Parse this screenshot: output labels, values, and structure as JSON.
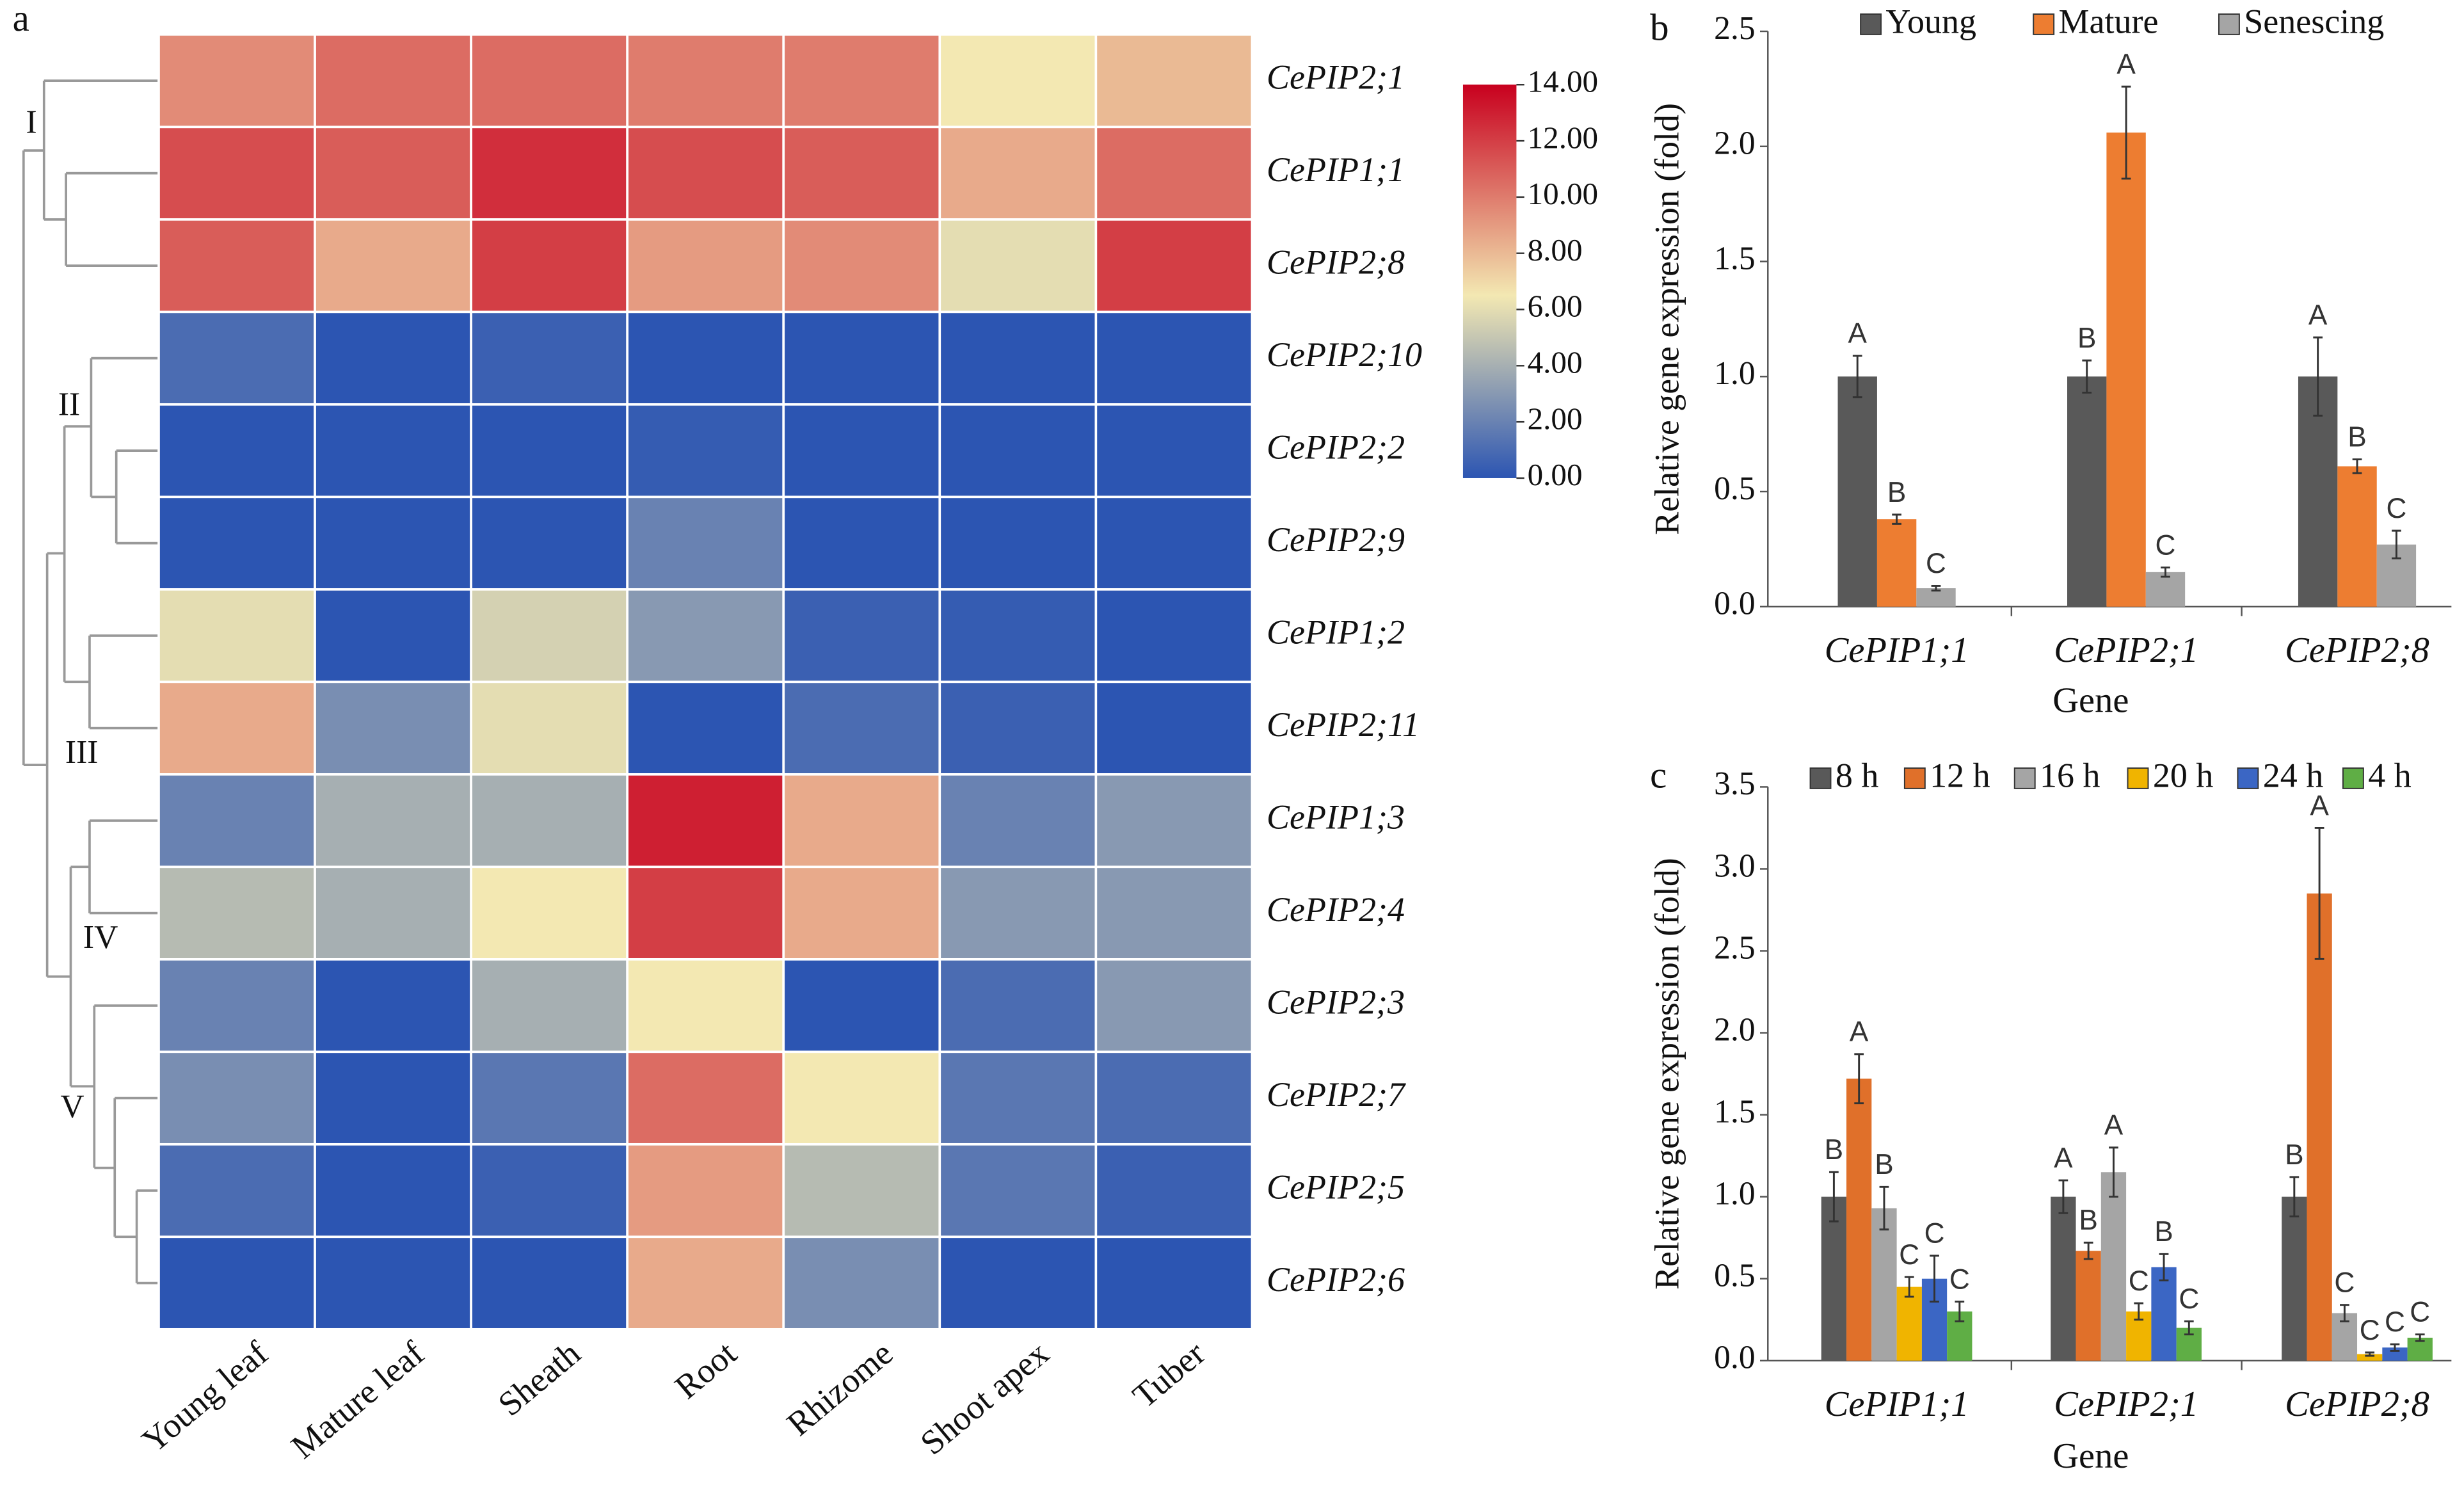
{
  "chart_data": [
    {
      "type": "heatmap",
      "panel": "a",
      "categories": [
        "Young leaf",
        "Mature leaf",
        "Sheath",
        "Root",
        "Rhizome",
        "Shoot apex",
        "Tuber"
      ],
      "rows": [
        "CePIP2;1",
        "CePIP1;1",
        "CePIP2;8",
        "CePIP2;10",
        "CePIP2;2",
        "CePIP2;9",
        "CePIP1;2",
        "CePIP2;11",
        "CePIP1;3",
        "CePIP2;4",
        "CePIP2;3",
        "CePIP2;7",
        "CePIP2;5",
        "CePIP2;6"
      ],
      "values": [
        [
          9.5,
          10.5,
          10.5,
          10,
          10,
          6.5,
          8
        ],
        [
          11.5,
          11,
          12.5,
          11.5,
          11,
          8.5,
          10.5
        ],
        [
          11,
          8.5,
          12,
          9,
          9.5,
          6,
          12
        ],
        [
          1,
          0,
          0.5,
          0,
          0,
          0,
          0
        ],
        [
          0,
          0,
          0,
          0.3,
          0,
          0,
          0
        ],
        [
          0,
          0,
          0,
          2,
          0,
          0,
          0
        ],
        [
          6,
          0,
          5.5,
          3,
          0.5,
          0.3,
          0
        ],
        [
          8.5,
          2.5,
          6,
          0,
          1,
          0.5,
          0
        ],
        [
          2,
          4,
          4,
          13,
          8.5,
          2,
          3
        ],
        [
          4.5,
          4,
          6.5,
          12,
          8.5,
          3,
          3
        ],
        [
          2,
          0,
          4,
          6.5,
          0,
          1,
          3
        ],
        [
          2.5,
          0,
          1.5,
          10.5,
          6.5,
          1.5,
          1
        ],
        [
          1,
          0,
          0.5,
          9,
          4.5,
          1.5,
          0.5
        ],
        [
          0,
          0,
          0,
          8.5,
          2.5,
          0,
          0
        ]
      ],
      "clusters": [
        "I",
        "II",
        "III",
        "IV",
        "V"
      ],
      "colorscale": [
        {
          "value": 0,
          "color": "#2c55b2"
        },
        {
          "value": 6.5,
          "color": "#f3e8b2"
        },
        {
          "value": 14,
          "color": "#c8001e"
        }
      ],
      "clim": [
        0,
        14
      ],
      "cticks": [
        {
          "value": 0,
          "label": "0.00"
        },
        {
          "value": 2,
          "label": "2.00"
        },
        {
          "value": 4,
          "label": "4.00"
        },
        {
          "value": 6,
          "label": "6.00"
        },
        {
          "value": 8,
          "label": "8.00"
        },
        {
          "value": 10,
          "label": "10.00"
        },
        {
          "value": 12,
          "label": "12.00"
        },
        {
          "value": 14,
          "label": "14.00"
        }
      ]
    },
    {
      "type": "bar",
      "panel": "b",
      "categories": [
        "CePIP1;1",
        "CePIP2;1",
        "CePIP2;8"
      ],
      "xlabel": "Gene",
      "ylabel": "Relative gene expression (fold)",
      "ylim": [
        0,
        2.5
      ],
      "yticks": [
        {
          "value": 0,
          "label": "0.0"
        },
        {
          "value": 0.5,
          "label": "0.5"
        },
        {
          "value": 1,
          "label": "1.0"
        },
        {
          "value": 1.5,
          "label": "1.5"
        },
        {
          "value": 2,
          "label": "2.0"
        },
        {
          "value": 2.5,
          "label": "2.5"
        }
      ],
      "series": [
        {
          "name": "Young",
          "color": "#595959",
          "values": [
            1,
            1,
            1
          ],
          "errors": [
            0.09,
            0.07,
            0.17
          ],
          "labels": [
            "A",
            "B",
            "A"
          ]
        },
        {
          "name": "Mature",
          "color": "#ed7d31",
          "values": [
            0.38,
            2.06,
            0.61
          ],
          "errors": [
            0.02,
            0.2,
            0.03
          ],
          "labels": [
            "B",
            "A",
            "B"
          ]
        },
        {
          "name": "Senescing",
          "color": "#a5a5a5",
          "values": [
            0.08,
            0.15,
            0.27
          ],
          "errors": [
            0.01,
            0.02,
            0.06
          ],
          "labels": [
            "C",
            "C",
            "C"
          ]
        }
      ]
    },
    {
      "type": "bar",
      "panel": "c",
      "categories": [
        "CePIP1;1",
        "CePIP2;1",
        "CePIP2;8"
      ],
      "xlabel": "Gene",
      "ylabel": "Relative gene expression (fold)",
      "ylim": [
        0,
        3.5
      ],
      "yticks": [
        {
          "value": 0,
          "label": "0.0"
        },
        {
          "value": 0.5,
          "label": "0.5"
        },
        {
          "value": 1,
          "label": "1.0"
        },
        {
          "value": 1.5,
          "label": "1.5"
        },
        {
          "value": 2,
          "label": "2.0"
        },
        {
          "value": 2.5,
          "label": "2.5"
        },
        {
          "value": 3,
          "label": "3.0"
        },
        {
          "value": 3.5,
          "label": "3.5"
        }
      ],
      "series": [
        {
          "name": "8 h",
          "color": "#595959",
          "values": [
            1,
            1,
            1
          ],
          "errors": [
            0.15,
            0.1,
            0.12
          ],
          "labels": [
            "B",
            "A",
            "B"
          ]
        },
        {
          "name": "12 h",
          "color": "#e0702a",
          "values": [
            1.72,
            0.67,
            2.85
          ],
          "errors": [
            0.15,
            0.05,
            0.4
          ],
          "labels": [
            "A",
            "B",
            "A"
          ]
        },
        {
          "name": "16 h",
          "color": "#a5a5a5",
          "values": [
            0.93,
            1.15,
            0.29
          ],
          "errors": [
            0.13,
            0.15,
            0.05
          ],
          "labels": [
            "B",
            "A",
            "C"
          ]
        },
        {
          "name": "20 h",
          "color": "#f0b400",
          "values": [
            0.45,
            0.3,
            0.04
          ],
          "errors": [
            0.06,
            0.05,
            0.01
          ],
          "labels": [
            "C",
            "C",
            "C"
          ]
        },
        {
          "name": "24 h",
          "color": "#3b66c4",
          "values": [
            0.5,
            0.57,
            0.08
          ],
          "errors": [
            0.14,
            0.08,
            0.02
          ],
          "labels": [
            "C",
            "B",
            "C"
          ]
        },
        {
          "name": "4 h",
          "color": "#5fae45",
          "values": [
            0.3,
            0.2,
            0.14
          ],
          "errors": [
            0.06,
            0.04,
            0.02
          ],
          "labels": [
            "C",
            "C",
            "C"
          ]
        }
      ]
    }
  ]
}
